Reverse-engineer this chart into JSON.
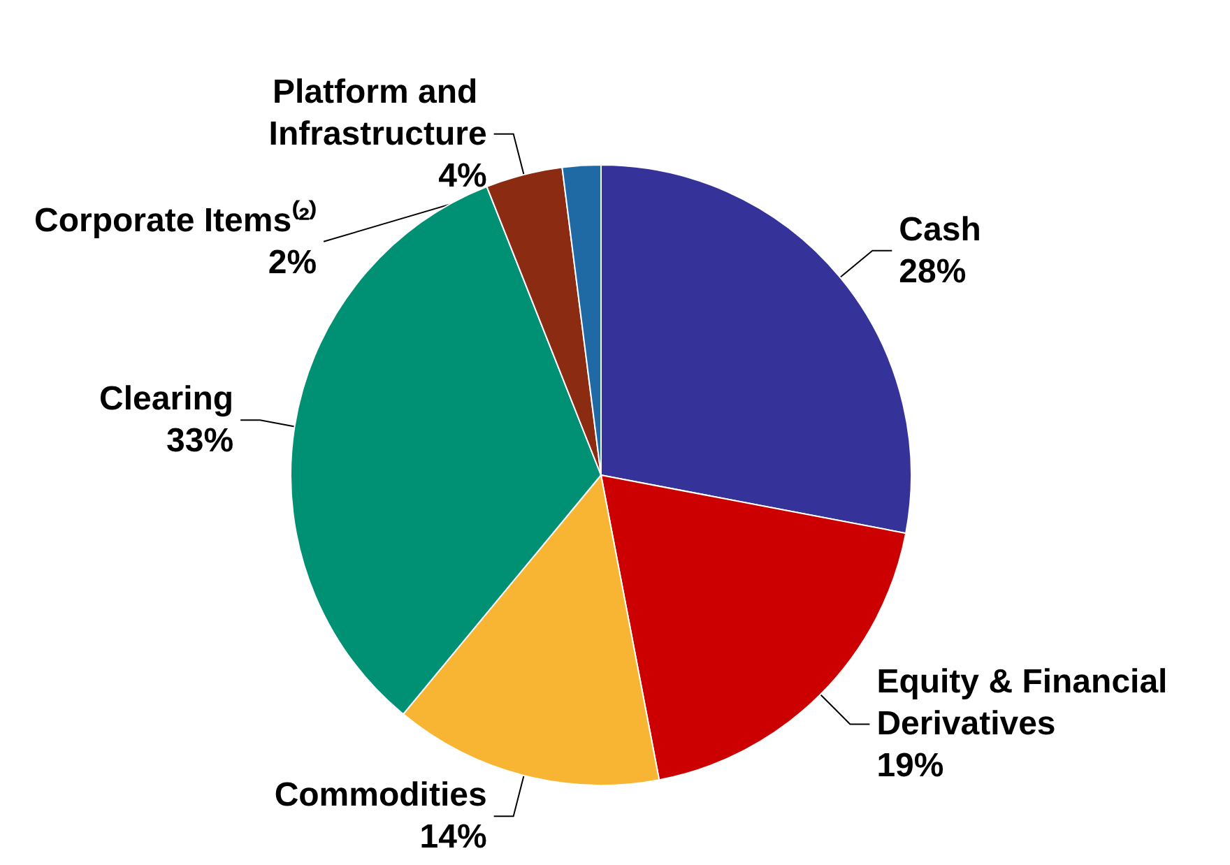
{
  "chart_data": {
    "type": "pie",
    "categories": [
      "Cash",
      "Equity & Financial Derivatives",
      "Commodities",
      "Clearing",
      "Platform and Infrastructure",
      "Corporate Items⁽²⁾"
    ],
    "values": [
      28,
      19,
      14,
      33,
      4,
      2
    ],
    "value_labels": [
      "28%",
      "19%",
      "14%",
      "33%",
      "4%",
      "2%"
    ],
    "colors": [
      "#35339a",
      "#cc0000",
      "#f8b533",
      "#009174",
      "#8b2c12",
      "#1f6aa5"
    ],
    "legend": false
  }
}
